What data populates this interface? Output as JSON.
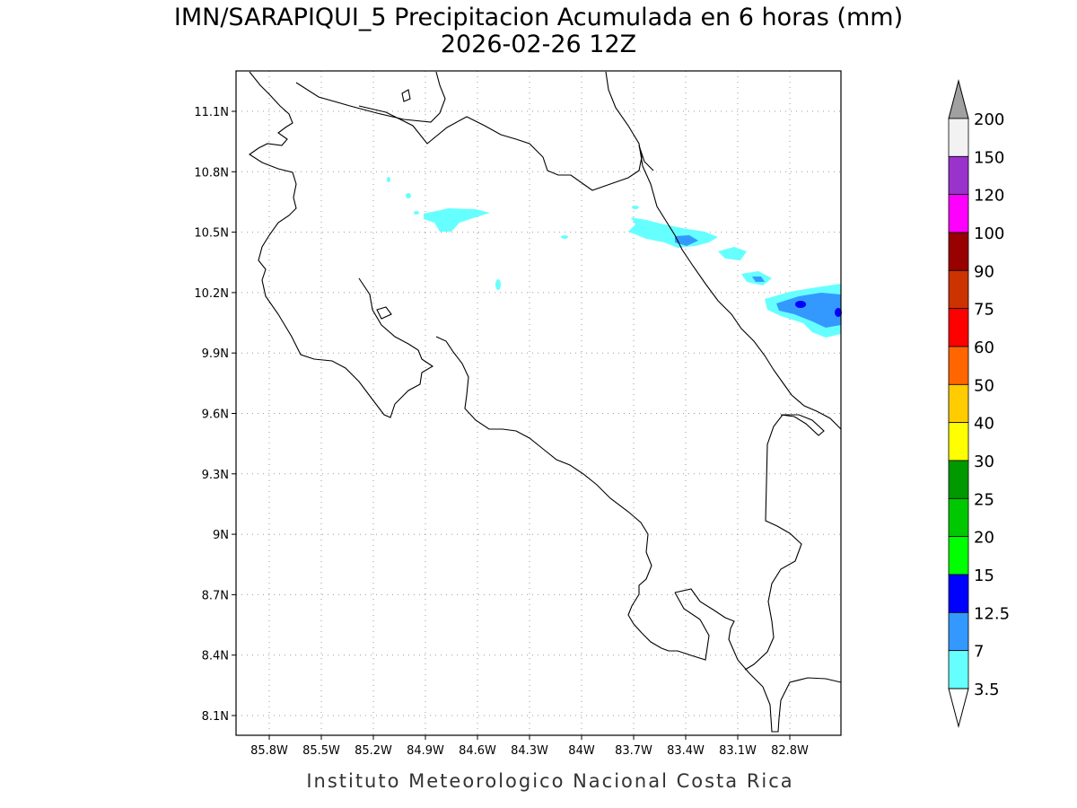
{
  "title": "IMN/SARAPIQUI_5 Precipitacion Acumulada en 6 horas (mm)",
  "subtitle": "2026-02-26 12Z",
  "lat_labels": [
    "11.1N",
    "10.8N",
    "10.5N",
    "10.2N",
    "9.9N",
    "9.6N",
    "9.3N",
    "9N",
    "8.7N",
    "8.4N",
    "8.1N"
  ],
  "lon_labels": [
    "85.8W",
    "85.5W",
    "85.2W",
    "84.9W",
    "84.6W",
    "84.3W",
    "84W",
    "83.7W",
    "83.4W",
    "83.1W",
    "82.8W"
  ],
  "colorbar": {
    "labels": [
      "200",
      "150",
      "120",
      "100",
      "90",
      "75",
      "60",
      "50",
      "40",
      "30",
      "25",
      "20",
      "15",
      "12.5",
      "7",
      "3.5"
    ],
    "colors": [
      "#f2f2f2",
      "#9933cc",
      "#ff00ff",
      "#990000",
      "#cc3300",
      "#ff0000",
      "#ff6600",
      "#ffcc00",
      "#ffff00",
      "#009900",
      "#00c800",
      "#00ff00",
      "#0000ff",
      "#3399ff",
      "#66ffff"
    ],
    "over_color": "#a0a0a0",
    "under_color": "#ffffff"
  },
  "footer": "Instituto Meteorologico Nacional Costa Rica"
}
